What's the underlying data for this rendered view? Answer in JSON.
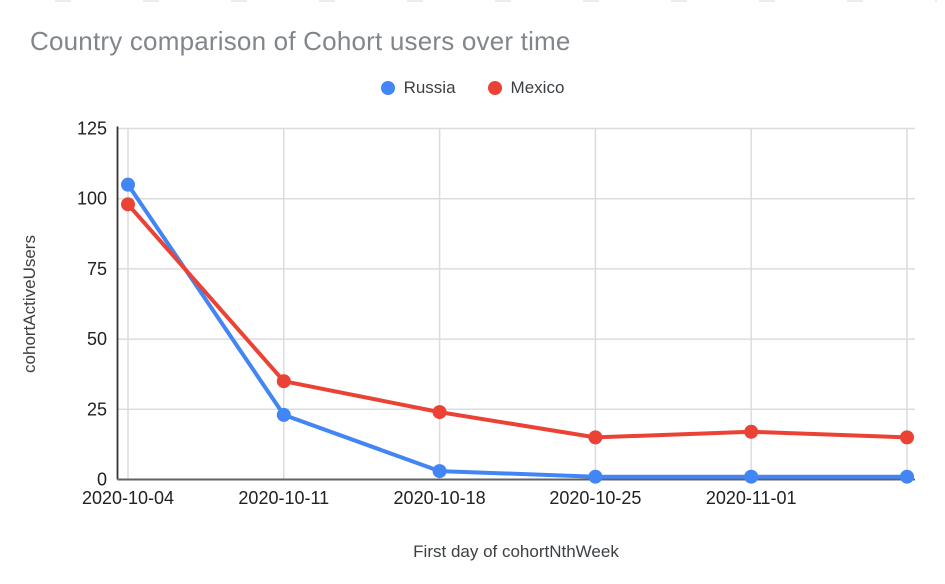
{
  "chart_data": {
    "type": "line",
    "title": "Country comparison of Cohort users over time",
    "xlabel": "First day of cohortNthWeek",
    "ylabel": "cohortActiveUsers",
    "categories": [
      "2020-10-04",
      "2020-10-11",
      "2020-10-18",
      "2020-10-25",
      "2020-11-01",
      ""
    ],
    "series": [
      {
        "name": "Russia",
        "color": "#4285F4",
        "values": [
          105,
          23,
          3,
          1,
          1,
          1
        ]
      },
      {
        "name": "Mexico",
        "color": "#EA4335",
        "values": [
          98,
          35,
          24,
          15,
          17,
          15
        ]
      }
    ],
    "yticks": [
      0,
      25,
      50,
      75,
      100,
      125
    ],
    "ylim": [
      0,
      125
    ],
    "grid": true,
    "legend_position": "top-center"
  },
  "colors": {
    "grid": "#dadce0",
    "axis_y": "#333333",
    "axis_x": "#5f6368",
    "tick_label": "#202124",
    "title": "#80868b"
  }
}
